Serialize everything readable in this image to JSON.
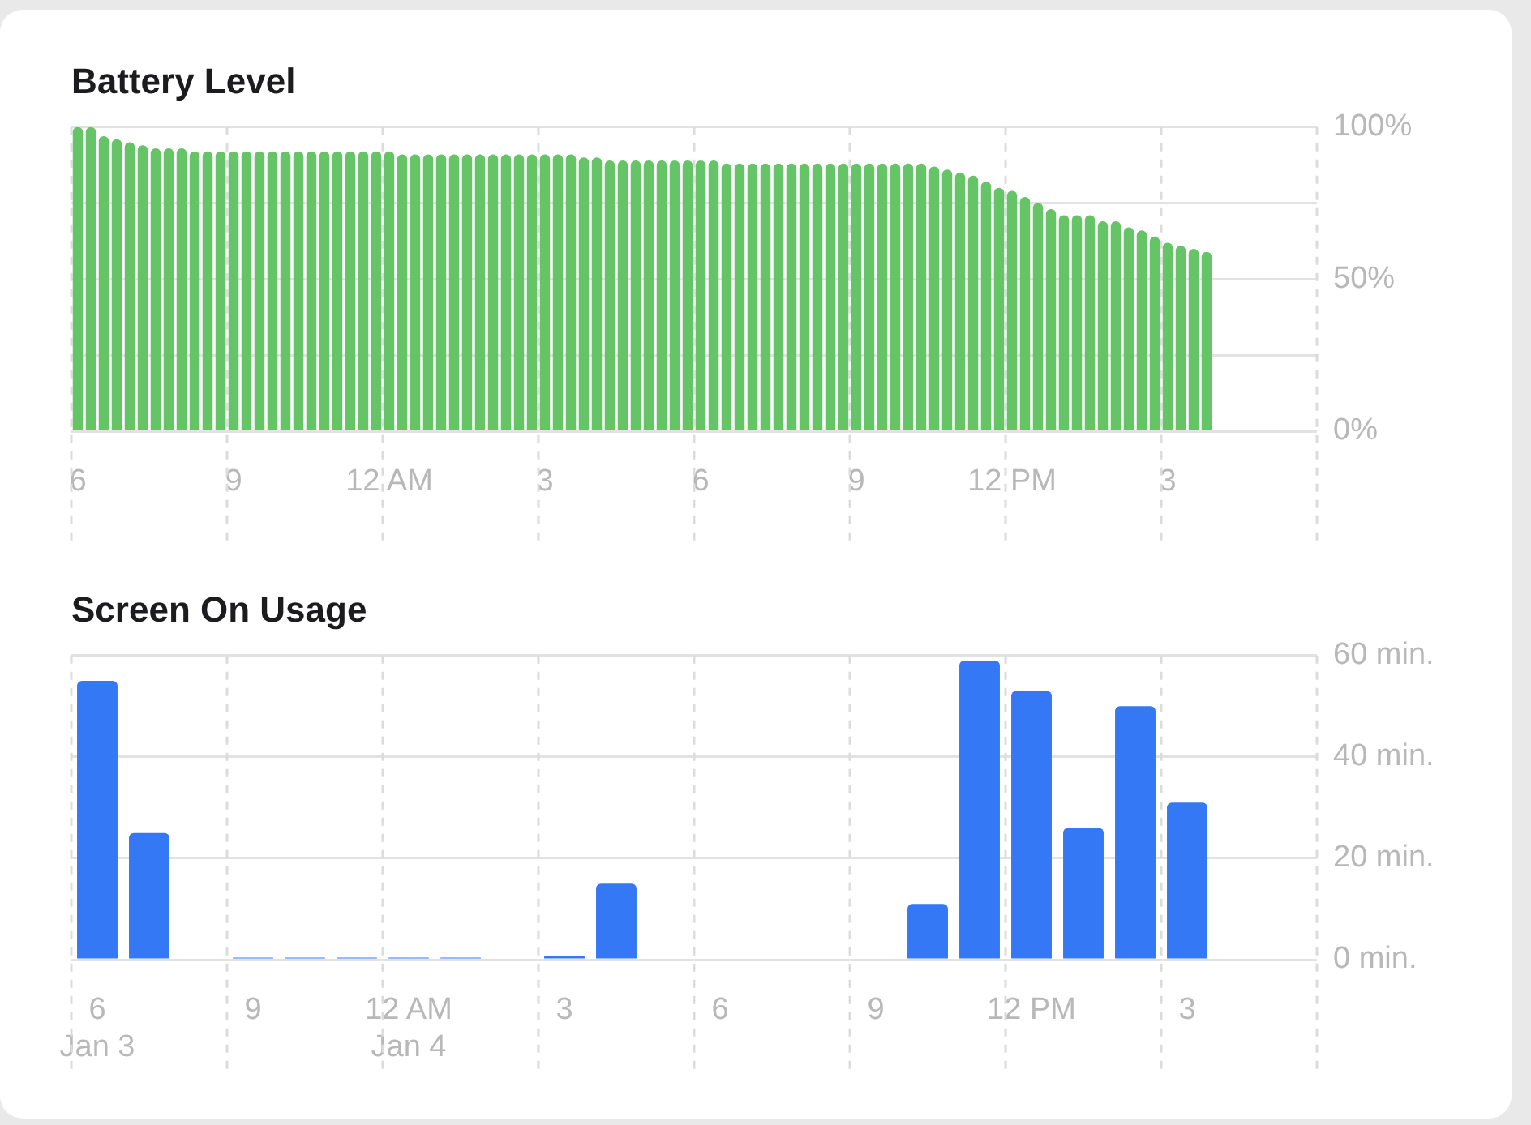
{
  "chart_data": [
    {
      "type": "bar",
      "title": "Battery Level",
      "categories": [
        "6",
        null,
        null,
        null,
        null,
        null,
        null,
        null,
        null,
        null,
        null,
        null,
        "9",
        null,
        null,
        null,
        null,
        null,
        null,
        null,
        null,
        null,
        null,
        null,
        "12 AM",
        null,
        null,
        null,
        null,
        null,
        null,
        null,
        null,
        null,
        null,
        null,
        "3",
        null,
        null,
        null,
        null,
        null,
        null,
        null,
        null,
        null,
        null,
        null,
        "6",
        null,
        null,
        null,
        null,
        null,
        null,
        null,
        null,
        null,
        null,
        null,
        "9",
        null,
        null,
        null,
        null,
        null,
        null,
        null,
        null,
        null,
        null,
        null,
        "12 PM",
        null,
        null,
        null,
        null,
        null,
        null,
        null,
        null,
        null,
        null,
        null,
        "3",
        null,
        null,
        null,
        null,
        null,
        null,
        null,
        null,
        null,
        null,
        null
      ],
      "values": [
        100,
        100,
        97,
        96,
        95,
        94,
        93,
        93,
        93,
        92,
        92,
        92,
        92,
        92,
        92,
        92,
        92,
        92,
        92,
        92,
        92,
        92,
        92,
        92,
        92,
        91,
        91,
        91,
        91,
        91,
        91,
        91,
        91,
        91,
        91,
        91,
        91,
        91,
        91,
        90,
        90,
        89,
        89,
        89,
        89,
        89,
        89,
        89,
        89,
        89,
        88,
        88,
        88,
        88,
        88,
        88,
        88,
        88,
        88,
        88,
        88,
        88,
        88,
        88,
        88,
        88,
        87,
        86,
        85,
        84,
        82,
        80,
        79,
        77,
        75,
        73,
        71,
        71,
        71,
        69,
        69,
        67,
        66,
        64,
        62,
        61,
        60,
        59,
        null,
        null,
        null,
        null,
        null,
        null,
        null,
        null
      ],
      "color": "#65c466",
      "ylim": [
        0,
        100
      ],
      "yticks": [
        {
          "value": 0,
          "label": "0%"
        },
        {
          "value": 25,
          "label": null
        },
        {
          "value": 50,
          "label": "50%"
        },
        {
          "value": 75,
          "label": null
        },
        {
          "value": 100,
          "label": "100%"
        }
      ],
      "grid": true,
      "legend": false
    },
    {
      "type": "bar",
      "title": "Screen On Usage",
      "categories": [
        "6\nJan 3",
        null,
        null,
        "9",
        null,
        null,
        "12 AM\nJan 4",
        null,
        null,
        "3",
        null,
        null,
        "6",
        null,
        null,
        "9",
        null,
        null,
        "12 PM",
        null,
        null,
        "3",
        null,
        null
      ],
      "values": [
        55,
        25,
        0,
        0.4,
        0.4,
        0.4,
        0.4,
        0.4,
        0,
        0.8,
        15,
        0,
        0,
        0,
        0,
        0,
        11,
        59,
        53,
        26,
        50,
        31,
        null,
        null
      ],
      "color": "#3478f6",
      "ylim": [
        0,
        60
      ],
      "yticks": [
        {
          "value": 0,
          "label": "0 min."
        },
        {
          "value": 20,
          "label": "20 min."
        },
        {
          "value": 40,
          "label": "40 min."
        },
        {
          "value": 60,
          "label": "60 min."
        }
      ],
      "grid": true,
      "legend": false
    }
  ]
}
